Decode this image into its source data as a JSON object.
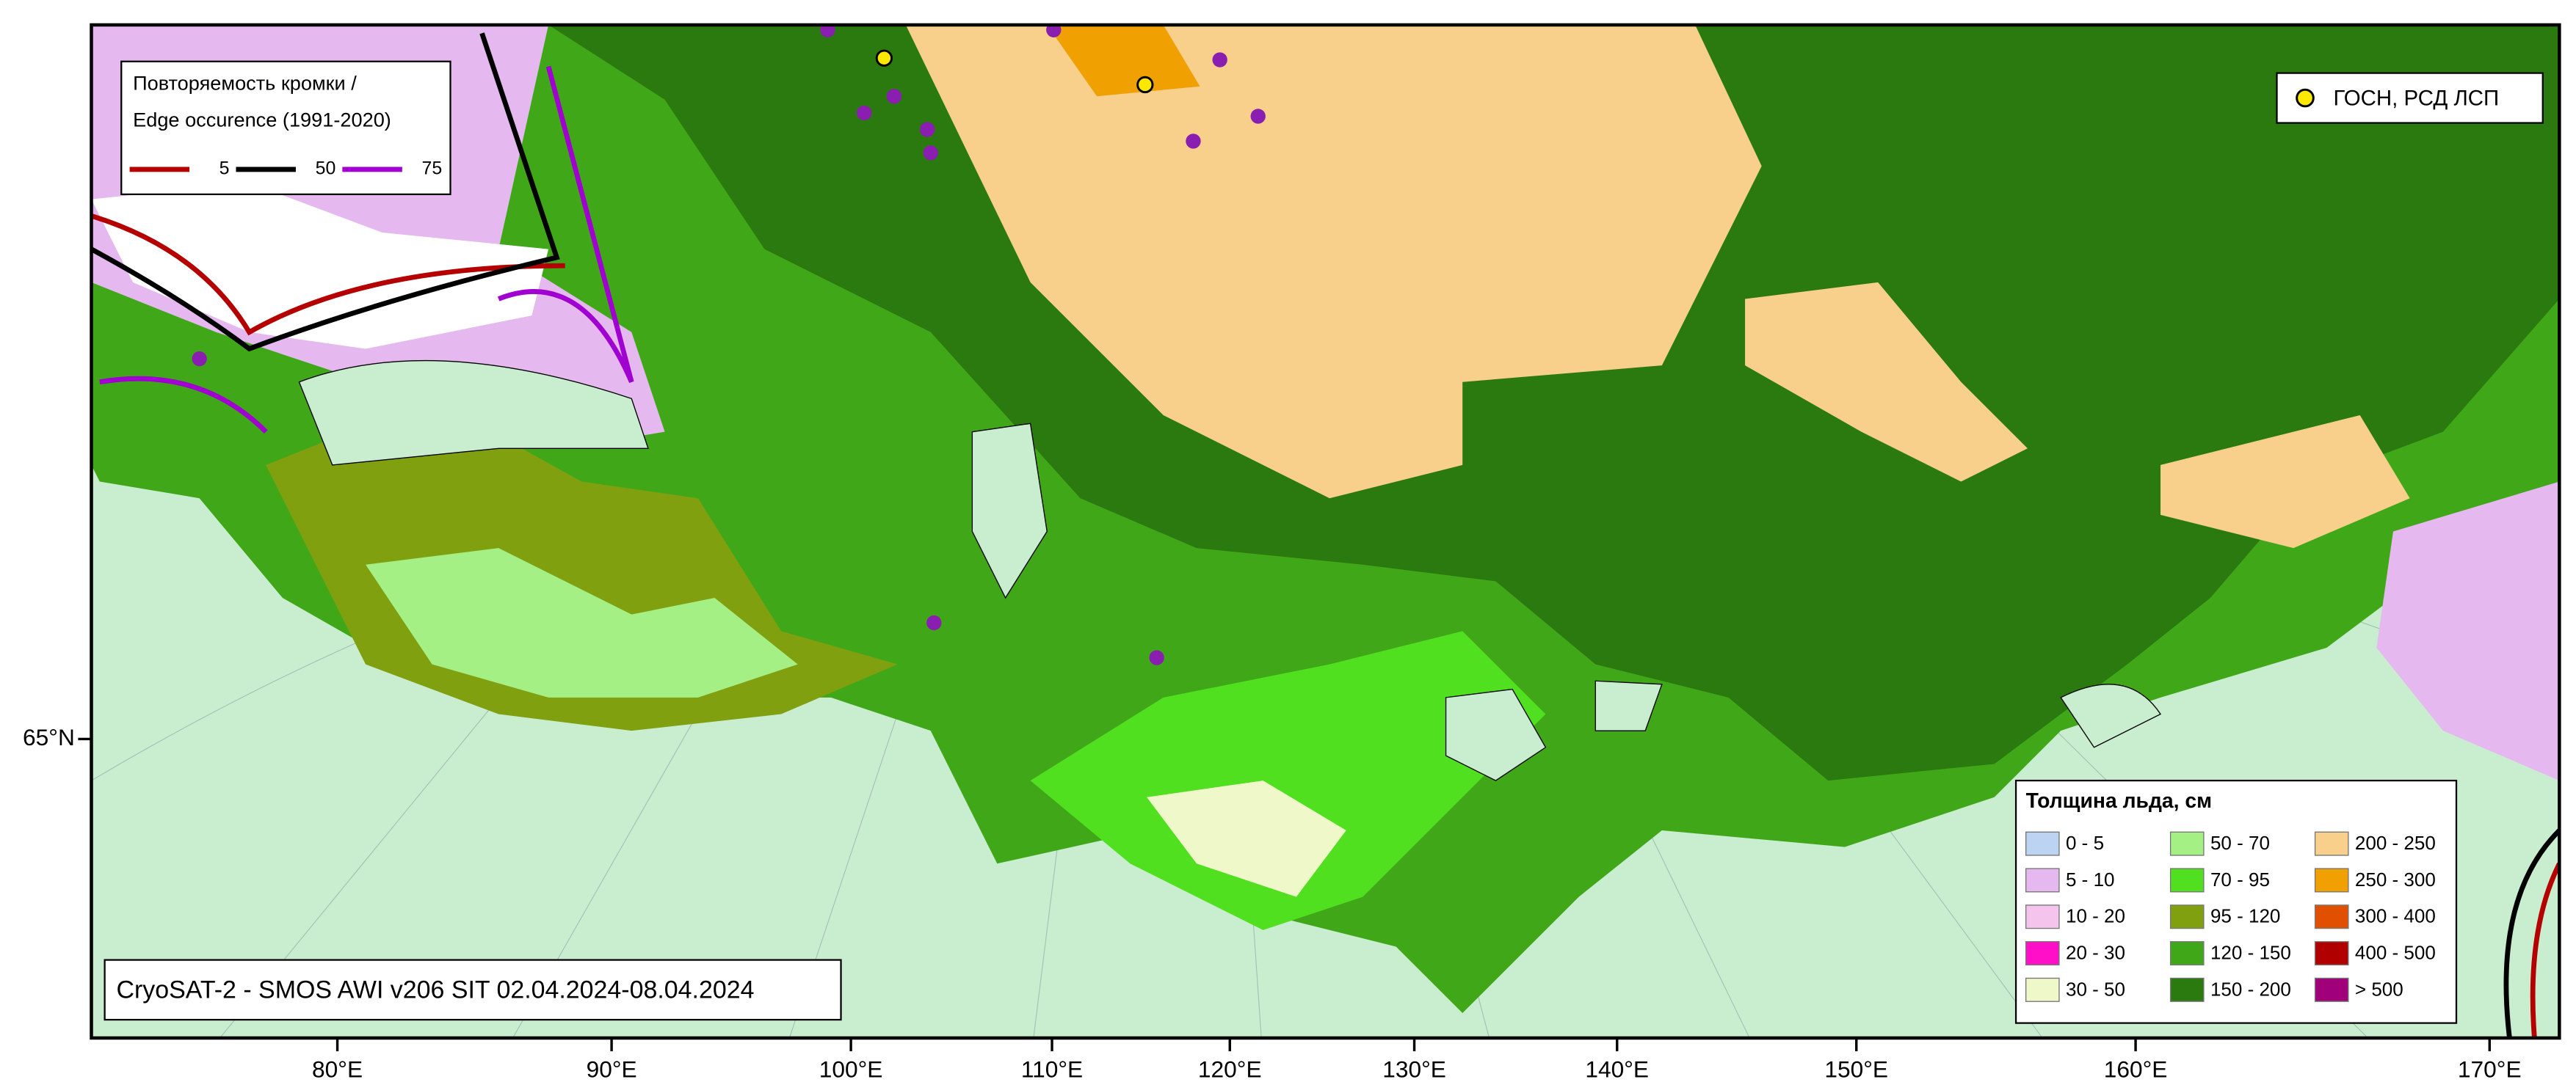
{
  "edge_legend": {
    "title_ru": "Повторяемость кромки /",
    "title_en": "Edge occurence (1991-2020)",
    "items": [
      {
        "label": "5",
        "color": "#b40000"
      },
      {
        "label": "50",
        "color": "#000000"
      },
      {
        "label": "75",
        "color": "#a000d0"
      }
    ]
  },
  "station_legend": {
    "label": "ГОСН, РСД ЛСП"
  },
  "thickness_legend": {
    "title": "Толщина льда, см",
    "items": [
      {
        "label": "0 - 5",
        "color": "#bcd3f2"
      },
      {
        "label": "5 - 10",
        "color": "#e6b8f0"
      },
      {
        "label": "10 - 20",
        "color": "#f5c4ec"
      },
      {
        "label": "20 - 30",
        "color": "#ff10c8"
      },
      {
        "label": "30 - 50",
        "color": "#eef8c8"
      },
      {
        "label": "50 - 70",
        "color": "#a4f084"
      },
      {
        "label": "70 - 95",
        "color": "#50e020"
      },
      {
        "label": "95 - 120",
        "color": "#80a010"
      },
      {
        "label": "120 - 150",
        "color": "#40a818"
      },
      {
        "label": "150 - 200",
        "color": "#2a7a10"
      },
      {
        "label": "200 - 250",
        "color": "#f8d08c"
      },
      {
        "label": "250 - 300",
        "color": "#f0a000"
      },
      {
        "label": "300 - 400",
        "color": "#e05000"
      },
      {
        "label": "400 - 500",
        "color": "#b00000"
      },
      {
        "label": "> 500",
        "color": "#a0007a"
      }
    ]
  },
  "source_label": "CryoSAT-2 - SMOS AWI v206 SIT 02.04.2024-08.04.2024",
  "lon_labels": [
    "80°E",
    "90°E",
    "100°E",
    "110°E",
    "120°E",
    "130°E",
    "140°E",
    "150°E",
    "160°E",
    "170°E"
  ],
  "lat_labels": [
    "65°N"
  ]
}
